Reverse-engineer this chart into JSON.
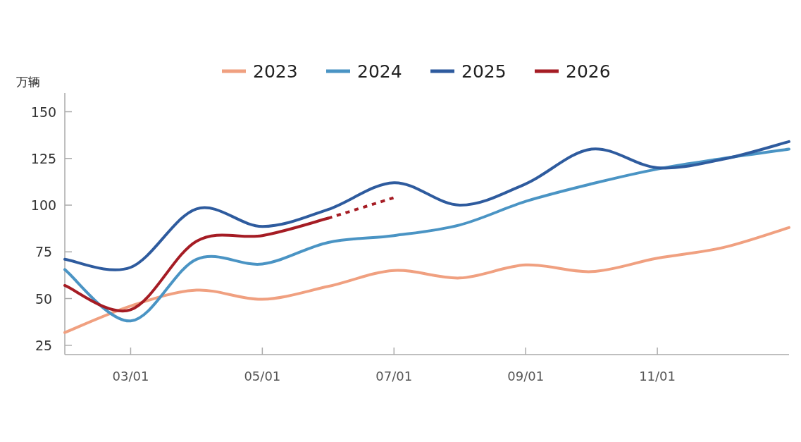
{
  "chart_data": {
    "type": "line",
    "ylabel": "万辆",
    "categories": [
      null,
      "03/01",
      null,
      "05/01",
      null,
      "07/01",
      null,
      "09/01",
      null,
      "11/01",
      null,
      null
    ],
    "series": [
      {
        "name": "2023",
        "color": "#f0a080",
        "values": [
          31.8,
          46,
          54.5,
          49.6,
          56.5,
          65,
          61,
          68,
          64.4,
          71.6,
          77.3,
          88
        ]
      },
      {
        "name": "2024",
        "color": "#4a94c4",
        "values": [
          65.5,
          38,
          71,
          68.5,
          80,
          83.7,
          89.4,
          102,
          111.4,
          119.3,
          125,
          130
        ]
      },
      {
        "name": "2025",
        "color": "#2e5b9e",
        "values": [
          71,
          66.7,
          98,
          88.6,
          97.7,
          112,
          100,
          111.4,
          130,
          120,
          124.6,
          134
        ]
      },
      {
        "name": "2026",
        "color": "#a51c24",
        "values": [
          57,
          44,
          80.7,
          83.7,
          93,
          null,
          null,
          null,
          null,
          null,
          null,
          null
        ]
      },
      {
        "color": "#a51c24",
        "line_style": "dotted",
        "values": [
          null,
          null,
          null,
          null,
          93,
          104,
          null,
          null,
          null,
          null,
          null,
          null
        ]
      }
    ],
    "ylim": [
      20,
      160
    ],
    "yticks": [
      25,
      50,
      75,
      100,
      125,
      150
    ],
    "legend": "top",
    "marker": "none",
    "line_style": "solid"
  }
}
